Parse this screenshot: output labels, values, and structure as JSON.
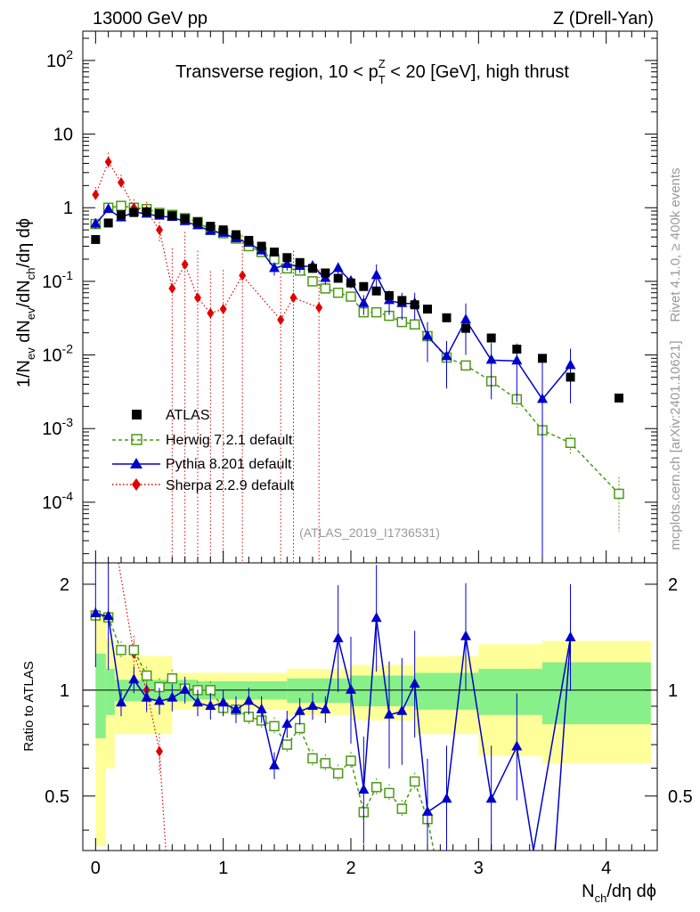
{
  "header": {
    "left": "13000 GeV pp",
    "right": "Z (Drell-Yan)",
    "title_pre": "Transverse region, 10 < p",
    "title_sup": "Z",
    "title_sub": "T",
    "title_post": " < 20 [GeV], high thrust",
    "ref_label": "(ATLAS_2019_I1736531)"
  },
  "side_text": {
    "rivet": "Rivet 4.1.0, ≥ 400k events",
    "mcplots": "mcplots.cern.ch [arXiv:2401.10621]"
  },
  "axes": {
    "xlabel_pre": "N",
    "xlabel_sub": "ch",
    "xlabel_post": "/dη dϕ",
    "ylabel_main": "1/N_ev dN_ev/dN_ch/dη dϕ",
    "ylabel_ratio": "Ratio to ATLAS",
    "x_ticks": [
      "0",
      "1",
      "2",
      "3",
      "4"
    ],
    "y_ticks_main": [
      "10^-4",
      "10^-3",
      "10^-2",
      "10^-1",
      "1",
      "10",
      "10^2"
    ],
    "y_ticks_ratio": [
      "0.5",
      "1",
      "2"
    ]
  },
  "legend": {
    "atlas": "ATLAS",
    "herwig": "Herwig 7.2.1 default",
    "pythia": "Pythia 8.201 default",
    "sherpa": "Sherpa 2.2.9 default"
  },
  "colors": {
    "atlas": "#000000",
    "herwig": "#4c9a14",
    "pythia": "#0000cc",
    "sherpa": "#e00000",
    "band_inner": "#88f088",
    "band_outer": "#ffff99"
  },
  "chart_data": {
    "type": "scatter",
    "xlim": [
      -0.1,
      4.4
    ],
    "ylim_main": [
      1.5e-05,
      250
    ],
    "ylim_ratio": [
      0.35,
      2.3
    ],
    "atlas": {
      "x": [
        0,
        0.1,
        0.2,
        0.3,
        0.4,
        0.5,
        0.6,
        0.7,
        0.8,
        0.9,
        1.0,
        1.1,
        1.2,
        1.3,
        1.4,
        1.5,
        1.6,
        1.7,
        1.8,
        1.9,
        2.0,
        2.1,
        2.2,
        2.3,
        2.4,
        2.5,
        2.6,
        2.75,
        2.9,
        3.1,
        3.3,
        3.5,
        3.72,
        4.1
      ],
      "y": [
        0.37,
        0.62,
        0.8,
        0.86,
        0.88,
        0.83,
        0.78,
        0.71,
        0.64,
        0.56,
        0.5,
        0.43,
        0.36,
        0.3,
        0.25,
        0.21,
        0.18,
        0.15,
        0.13,
        0.11,
        0.095,
        0.085,
        0.074,
        0.064,
        0.055,
        0.048,
        0.042,
        0.032,
        0.023,
        0.017,
        0.012,
        0.009,
        0.005,
        0.0026
      ]
    },
    "herwig": {
      "x": [
        0,
        0.1,
        0.2,
        0.3,
        0.4,
        0.5,
        0.6,
        0.7,
        0.8,
        0.9,
        1.0,
        1.1,
        1.2,
        1.3,
        1.4,
        1.5,
        1.6,
        1.7,
        1.8,
        1.9,
        2.0,
        2.1,
        2.2,
        2.3,
        2.4,
        2.5,
        2.6,
        2.75,
        2.9,
        3.1,
        3.3,
        3.5,
        3.72,
        4.1
      ],
      "y": [
        0.6,
        1.0,
        1.06,
        1.0,
        0.96,
        0.85,
        0.8,
        0.72,
        0.64,
        0.5,
        0.45,
        0.38,
        0.3,
        0.25,
        0.2,
        0.15,
        0.14,
        0.1,
        0.08,
        0.07,
        0.062,
        0.038,
        0.038,
        0.034,
        0.028,
        0.026,
        0.018,
        0.0092,
        0.0072,
        0.0044,
        0.0025,
        0.00095,
        0.00064,
        0.00013
      ],
      "err": [
        0.05,
        0.08,
        0.08,
        0.08,
        0.07,
        0.07,
        0.06,
        0.06,
        0.05,
        0.04,
        0.04,
        0.03,
        0.03,
        0.02,
        0.02,
        0.01,
        0.01,
        0.008,
        0.007,
        0.006,
        0.006,
        0.004,
        0.004,
        0.004,
        0.003,
        0.003,
        0.003,
        0.0015,
        0.001,
        0.0008,
        0.0006,
        0.0004,
        0.0002,
        9e-05
      ]
    },
    "pythia": {
      "x": [
        0,
        0.1,
        0.2,
        0.3,
        0.4,
        0.5,
        0.6,
        0.7,
        0.8,
        0.9,
        1.0,
        1.1,
        1.2,
        1.3,
        1.4,
        1.5,
        1.6,
        1.7,
        1.8,
        1.9,
        2.0,
        2.1,
        2.2,
        2.3,
        2.4,
        2.5,
        2.6,
        2.75,
        2.9,
        3.1,
        3.3,
        3.5,
        3.72
      ],
      "y": [
        0.6,
        0.95,
        0.73,
        0.88,
        0.82,
        0.77,
        0.74,
        0.65,
        0.57,
        0.48,
        0.45,
        0.38,
        0.33,
        0.26,
        0.15,
        0.17,
        0.16,
        0.16,
        0.11,
        0.15,
        0.1,
        0.05,
        0.12,
        0.055,
        0.05,
        0.05,
        0.018,
        0.0095,
        0.03,
        0.0085,
        0.0083,
        0.0025,
        0.0072
      ],
      "err_up": [
        0.08,
        0.1,
        0.08,
        0.08,
        0.07,
        0.06,
        0.05,
        0.05,
        0.05,
        0.04,
        0.04,
        0.03,
        0.03,
        0.03,
        0.03,
        0.03,
        0.03,
        0.03,
        0.02,
        0.03,
        0.02,
        0.015,
        0.05,
        0.02,
        0.02,
        0.02,
        0.01,
        0.006,
        0.02,
        0.006,
        0.006,
        0.006,
        0.005
      ],
      "err_down_to_edge": [
        false,
        false,
        false,
        false,
        false,
        false,
        false,
        false,
        false,
        false,
        false,
        false,
        false,
        false,
        false,
        false,
        false,
        false,
        false,
        false,
        false,
        false,
        false,
        false,
        false,
        false,
        false,
        false,
        false,
        false,
        false,
        true,
        false
      ]
    },
    "sherpa": {
      "x": [
        0,
        0.1,
        0.2,
        0.3,
        0.4,
        0.5,
        0.6,
        0.7,
        0.8,
        0.9,
        1.0,
        1.15,
        1.45,
        1.55,
        1.75
      ],
      "y": [
        1.5,
        4.2,
        2.2,
        1.0,
        0.9,
        0.5,
        0.08,
        0.17,
        0.06,
        0.037,
        0.042,
        0.12,
        0.03,
        0.06,
        0.044
      ],
      "err_up": [
        0.4,
        1.4,
        0.6,
        0.3,
        0.3,
        0.3,
        0.2,
        0.3,
        0.2,
        0.1,
        0.1,
        0.3,
        0.1,
        0.2,
        0.1
      ],
      "err_down_to_edge": [
        false,
        false,
        false,
        false,
        false,
        false,
        false,
        true,
        true,
        true,
        true,
        true,
        true,
        true,
        true
      ]
    },
    "ratio": {
      "pythia_x": [
        0,
        0.1,
        0.2,
        0.3,
        0.4,
        0.5,
        0.6,
        0.7,
        0.8,
        0.9,
        1.0,
        1.1,
        1.2,
        1.3,
        1.4,
        1.5,
        1.6,
        1.7,
        1.8,
        1.9,
        2.0,
        2.1,
        2.2,
        2.3,
        2.4,
        2.5,
        2.6,
        2.75,
        2.9,
        3.1,
        3.3,
        3.72
      ],
      "pythia_y": [
        1.65,
        1.62,
        0.92,
        1.07,
        0.95,
        0.93,
        0.95,
        1.0,
        0.92,
        0.9,
        0.92,
        0.88,
        0.93,
        0.88,
        0.61,
        0.8,
        0.87,
        0.9,
        0.88,
        1.4,
        1.0,
        0.52,
        1.6,
        0.85,
        0.87,
        1.04,
        0.45,
        0.49,
        1.42,
        0.49,
        0.69,
        1.41
      ],
      "herwig_x": [
        0,
        0.1,
        0.2,
        0.3,
        0.4,
        0.5,
        0.6,
        0.7,
        0.8,
        0.9,
        1.0,
        1.1,
        1.2,
        1.3,
        1.4,
        1.5,
        1.6,
        1.7,
        1.8,
        1.9,
        2.0,
        2.1,
        2.2,
        2.3,
        2.4,
        2.5,
        2.6
      ],
      "herwig_y": [
        1.63,
        1.61,
        1.3,
        1.3,
        1.1,
        1.02,
        1.08,
        1.01,
        1.0,
        1.0,
        0.89,
        0.88,
        0.84,
        0.82,
        0.79,
        0.7,
        0.78,
        0.64,
        0.62,
        0.58,
        0.63,
        0.45,
        0.53,
        0.51,
        0.46,
        0.55,
        0.43
      ],
      "sherpa_x": [
        0.3,
        0.4,
        0.5
      ],
      "sherpa_y": [
        1.27,
        1.0,
        0.67
      ],
      "band_inner": [
        [
          0,
          0.08,
          0.27
        ],
        [
          0.08,
          0.15,
          0.15
        ],
        [
          0.15,
          0.8,
          0.07
        ],
        [
          0.8,
          1.5,
          0.06
        ],
        [
          1.5,
          2.0,
          0.08
        ],
        [
          2.0,
          2.5,
          0.1
        ],
        [
          2.5,
          3.0,
          0.12
        ],
        [
          3.0,
          3.5,
          0.15
        ],
        [
          3.5,
          4.35,
          0.2
        ]
      ],
      "band_outer": [
        [
          0,
          0.08,
          0.65
        ],
        [
          0.08,
          0.15,
          0.4
        ],
        [
          0.15,
          0.6,
          0.25
        ],
        [
          0.6,
          1.5,
          0.12
        ],
        [
          1.5,
          2.0,
          0.15
        ],
        [
          2.0,
          2.5,
          0.18
        ],
        [
          2.5,
          3.0,
          0.25
        ],
        [
          3.0,
          3.5,
          0.35
        ],
        [
          3.5,
          4.35,
          0.38
        ]
      ]
    }
  }
}
